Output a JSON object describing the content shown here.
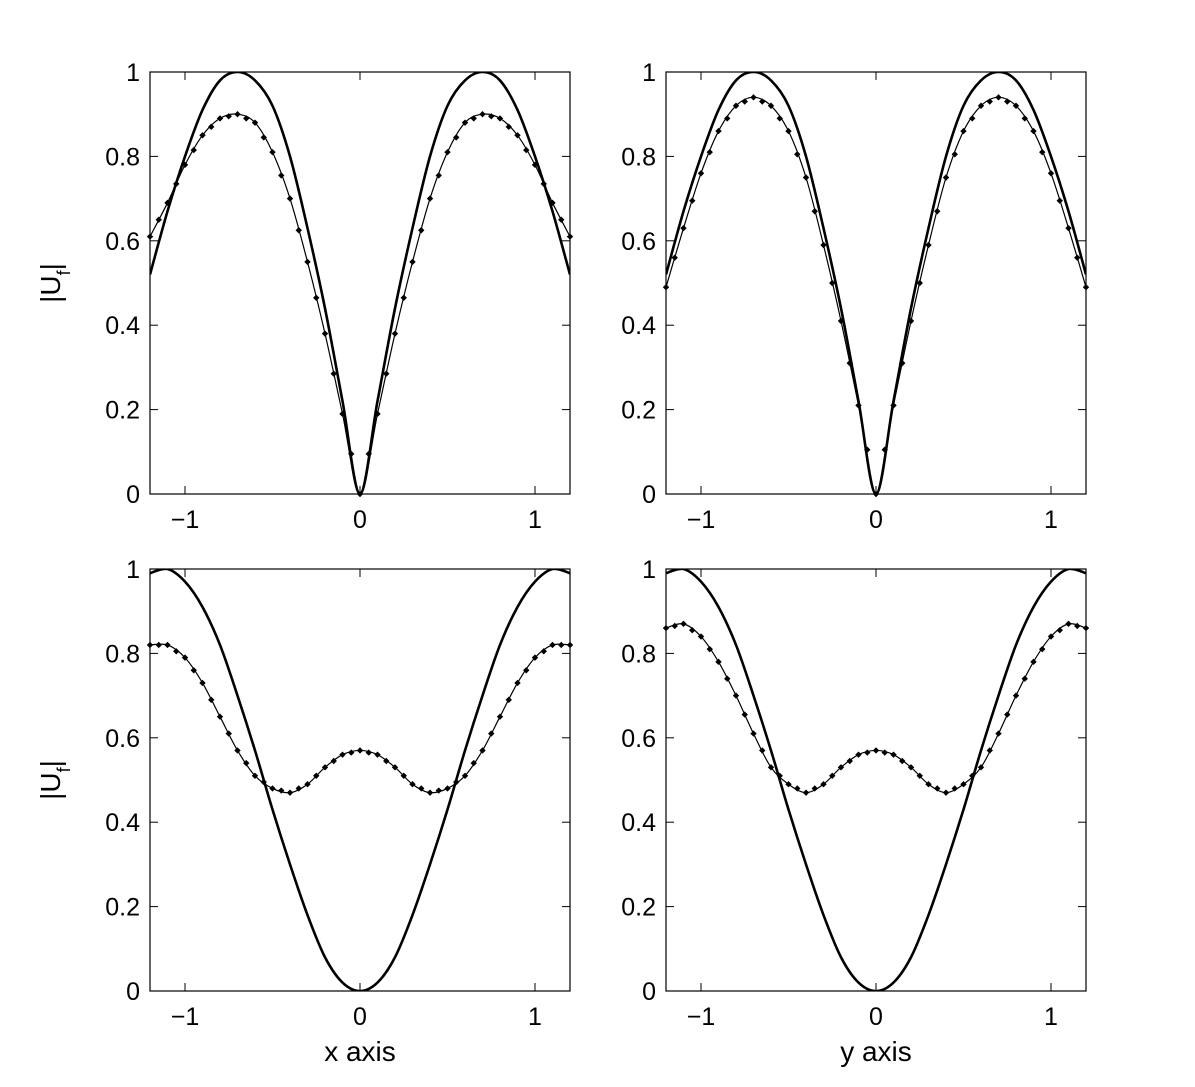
{
  "chart_data": [
    {
      "type": "line",
      "panel": "top-left",
      "xlabel": "",
      "ylabel": "|U_f|",
      "xlim": [
        -1.2,
        1.2
      ],
      "ylim": [
        0,
        1
      ],
      "xticks": [
        "-1",
        "0",
        "1"
      ],
      "yticks": [
        "0",
        "0.2",
        "0.4",
        "0.6",
        "0.8",
        "1"
      ],
      "grid": false,
      "series": [
        {
          "style": "solid-thick",
          "x": [
            -1.2,
            -1.1,
            -1.0,
            -0.9,
            -0.8,
            -0.7,
            -0.6,
            -0.5,
            -0.4,
            -0.3,
            -0.2,
            -0.1,
            0,
            0.1,
            0.2,
            0.3,
            0.4,
            0.5,
            0.6,
            0.7,
            0.8,
            0.9,
            1.0,
            1.1,
            1.2
          ],
          "values": [
            0.52,
            0.67,
            0.8,
            0.91,
            0.98,
            1.0,
            0.98,
            0.92,
            0.8,
            0.63,
            0.44,
            0.22,
            0,
            0.22,
            0.44,
            0.63,
            0.8,
            0.92,
            0.98,
            1.0,
            0.98,
            0.91,
            0.8,
            0.67,
            0.52
          ]
        },
        {
          "style": "dotted-markers",
          "x": [
            -1.2,
            -1.1,
            -1.0,
            -0.9,
            -0.8,
            -0.7,
            -0.6,
            -0.5,
            -0.4,
            -0.3,
            -0.2,
            -0.1,
            0,
            0.1,
            0.2,
            0.3,
            0.4,
            0.5,
            0.6,
            0.7,
            0.8,
            0.9,
            1.0,
            1.1,
            1.2
          ],
          "values": [
            0.61,
            0.69,
            0.78,
            0.85,
            0.89,
            0.9,
            0.88,
            0.81,
            0.7,
            0.55,
            0.38,
            0.19,
            0,
            0.19,
            0.38,
            0.55,
            0.7,
            0.81,
            0.88,
            0.9,
            0.89,
            0.85,
            0.78,
            0.69,
            0.61
          ]
        }
      ]
    },
    {
      "type": "line",
      "panel": "top-right",
      "xlabel": "",
      "ylabel": "",
      "xlim": [
        -1.2,
        1.2
      ],
      "ylim": [
        0,
        1
      ],
      "xticks": [
        "-1",
        "0",
        "1"
      ],
      "yticks": [
        "0",
        "0.2",
        "0.4",
        "0.6",
        "0.8",
        "1"
      ],
      "grid": false,
      "series": [
        {
          "style": "solid-thick",
          "x": [
            -1.2,
            -1.1,
            -1.0,
            -0.9,
            -0.8,
            -0.7,
            -0.6,
            -0.5,
            -0.4,
            -0.3,
            -0.2,
            -0.1,
            0,
            0.1,
            0.2,
            0.3,
            0.4,
            0.5,
            0.6,
            0.7,
            0.8,
            0.9,
            1.0,
            1.1,
            1.2
          ],
          "values": [
            0.52,
            0.67,
            0.8,
            0.91,
            0.98,
            1.0,
            0.98,
            0.92,
            0.8,
            0.63,
            0.44,
            0.22,
            0,
            0.22,
            0.44,
            0.63,
            0.8,
            0.92,
            0.98,
            1.0,
            0.98,
            0.91,
            0.8,
            0.67,
            0.52
          ]
        },
        {
          "style": "dotted-markers",
          "x": [
            -1.2,
            -1.1,
            -1.0,
            -0.9,
            -0.8,
            -0.7,
            -0.6,
            -0.5,
            -0.4,
            -0.3,
            -0.2,
            -0.1,
            0,
            0.1,
            0.2,
            0.3,
            0.4,
            0.5,
            0.6,
            0.7,
            0.8,
            0.9,
            1.0,
            1.1,
            1.2
          ],
          "values": [
            0.49,
            0.63,
            0.76,
            0.86,
            0.92,
            0.94,
            0.92,
            0.86,
            0.75,
            0.59,
            0.41,
            0.21,
            0,
            0.21,
            0.41,
            0.59,
            0.75,
            0.86,
            0.92,
            0.94,
            0.92,
            0.86,
            0.76,
            0.63,
            0.49
          ]
        }
      ]
    },
    {
      "type": "line",
      "panel": "bottom-left",
      "xlabel": "x axis",
      "ylabel": "|U_f|",
      "xlim": [
        -1.2,
        1.2
      ],
      "ylim": [
        0,
        1
      ],
      "xticks": [
        "-1",
        "0",
        "1"
      ],
      "yticks": [
        "0",
        "0.2",
        "0.4",
        "0.6",
        "0.8",
        "1"
      ],
      "grid": false,
      "series": [
        {
          "style": "solid-thick",
          "x": [
            -1.2,
            -1.1,
            -1.0,
            -0.9,
            -0.8,
            -0.7,
            -0.6,
            -0.5,
            -0.4,
            -0.3,
            -0.2,
            -0.1,
            0,
            0.1,
            0.2,
            0.3,
            0.4,
            0.5,
            0.6,
            0.7,
            0.8,
            0.9,
            1.0,
            1.1,
            1.2
          ],
          "values": [
            0.99,
            1.0,
            0.97,
            0.91,
            0.82,
            0.7,
            0.57,
            0.43,
            0.3,
            0.18,
            0.08,
            0.02,
            0,
            0.02,
            0.08,
            0.18,
            0.3,
            0.43,
            0.57,
            0.7,
            0.82,
            0.91,
            0.97,
            1.0,
            0.99
          ]
        },
        {
          "style": "dotted-markers",
          "x": [
            -1.2,
            -1.1,
            -1.0,
            -0.9,
            -0.8,
            -0.7,
            -0.6,
            -0.5,
            -0.4,
            -0.3,
            -0.2,
            -0.1,
            0,
            0.1,
            0.2,
            0.3,
            0.4,
            0.5,
            0.6,
            0.7,
            0.8,
            0.9,
            1.0,
            1.1,
            1.2
          ],
          "values": [
            0.82,
            0.82,
            0.79,
            0.73,
            0.65,
            0.57,
            0.51,
            0.48,
            0.47,
            0.49,
            0.53,
            0.56,
            0.57,
            0.56,
            0.53,
            0.49,
            0.47,
            0.48,
            0.51,
            0.57,
            0.65,
            0.73,
            0.79,
            0.82,
            0.82
          ]
        }
      ]
    },
    {
      "type": "line",
      "panel": "bottom-right",
      "xlabel": "y axis",
      "ylabel": "",
      "xlim": [
        -1.2,
        1.2
      ],
      "ylim": [
        0,
        1
      ],
      "xticks": [
        "-1",
        "0",
        "1"
      ],
      "yticks": [
        "0",
        "0.2",
        "0.4",
        "0.6",
        "0.8",
        "1"
      ],
      "grid": false,
      "series": [
        {
          "style": "solid-thick",
          "x": [
            -1.2,
            -1.1,
            -1.0,
            -0.9,
            -0.8,
            -0.7,
            -0.6,
            -0.5,
            -0.4,
            -0.3,
            -0.2,
            -0.1,
            0,
            0.1,
            0.2,
            0.3,
            0.4,
            0.5,
            0.6,
            0.7,
            0.8,
            0.9,
            1.0,
            1.1,
            1.2
          ],
          "values": [
            0.99,
            1.0,
            0.97,
            0.91,
            0.82,
            0.7,
            0.57,
            0.43,
            0.3,
            0.18,
            0.08,
            0.02,
            0,
            0.02,
            0.08,
            0.18,
            0.3,
            0.43,
            0.57,
            0.7,
            0.82,
            0.91,
            0.97,
            1.0,
            0.99
          ]
        },
        {
          "style": "dotted-markers",
          "x": [
            -1.2,
            -1.1,
            -1.0,
            -0.9,
            -0.8,
            -0.7,
            -0.6,
            -0.5,
            -0.4,
            -0.3,
            -0.2,
            -0.1,
            0,
            0.1,
            0.2,
            0.3,
            0.4,
            0.5,
            0.6,
            0.7,
            0.8,
            0.9,
            1.0,
            1.1,
            1.2
          ],
          "values": [
            0.86,
            0.87,
            0.84,
            0.78,
            0.7,
            0.61,
            0.53,
            0.49,
            0.47,
            0.49,
            0.53,
            0.56,
            0.57,
            0.56,
            0.53,
            0.49,
            0.47,
            0.49,
            0.53,
            0.61,
            0.7,
            0.78,
            0.84,
            0.87,
            0.86
          ]
        }
      ]
    }
  ]
}
